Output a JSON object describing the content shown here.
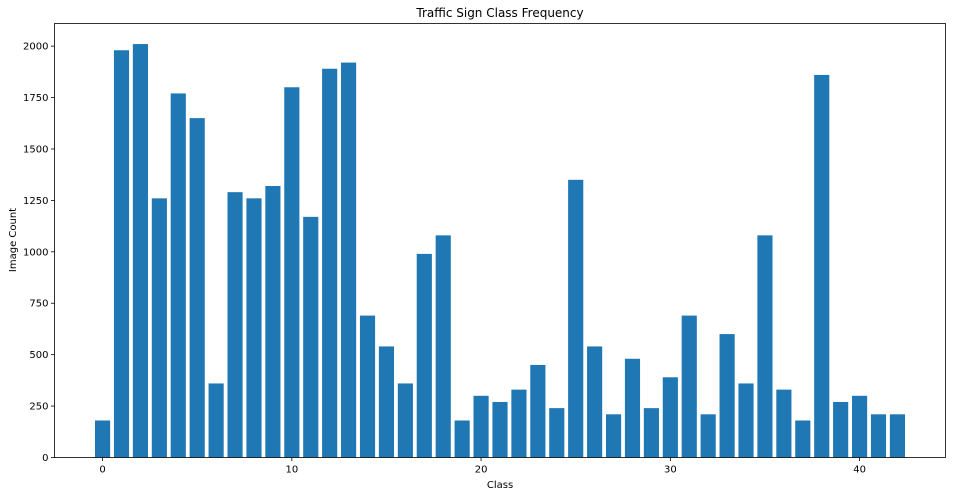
{
  "chart_data": {
    "type": "bar",
    "title": "Traffic Sign Class Frequency",
    "xlabel": "Class",
    "ylabel": "Image Count",
    "x": [
      0,
      1,
      2,
      3,
      4,
      5,
      6,
      7,
      8,
      9,
      10,
      11,
      12,
      13,
      14,
      15,
      16,
      17,
      18,
      19,
      20,
      21,
      22,
      23,
      24,
      25,
      26,
      27,
      28,
      29,
      30,
      31,
      32,
      33,
      34,
      35,
      36,
      37,
      38,
      39,
      40,
      41,
      42
    ],
    "values": [
      180,
      1980,
      2010,
      1260,
      1770,
      1650,
      360,
      1290,
      1260,
      1320,
      1800,
      1170,
      1890,
      1920,
      690,
      540,
      360,
      990,
      1080,
      180,
      300,
      270,
      330,
      450,
      240,
      1350,
      540,
      210,
      480,
      240,
      390,
      690,
      210,
      600,
      360,
      1080,
      330,
      180,
      1860,
      270,
      300,
      210,
      210
    ],
    "xlim": [
      -2.54,
      44.54
    ],
    "ylim": [
      0,
      2110
    ],
    "xticks": [
      0,
      10,
      20,
      30,
      40
    ],
    "yticks": [
      0,
      250,
      500,
      750,
      1000,
      1250,
      1500,
      1750,
      2000
    ],
    "grid": false,
    "legend": false,
    "bar_color": "#1f77b4",
    "axis_color": "#000000"
  }
}
